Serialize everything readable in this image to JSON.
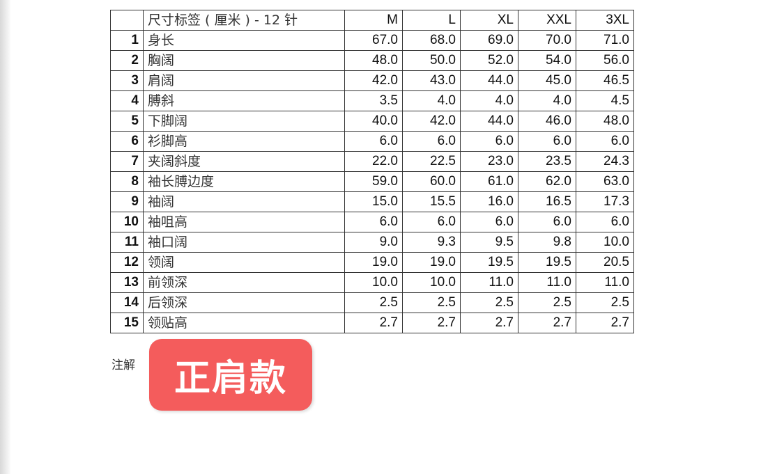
{
  "table": {
    "title": "尺寸标签 ( 厘米 ) - 12 针",
    "sizes": [
      "M",
      "L",
      "XL",
      "XXL",
      "3XL"
    ],
    "rows": [
      {
        "no": "1",
        "label": "身长",
        "values": [
          "67.0",
          "68.0",
          "69.0",
          "70.0",
          "71.0"
        ]
      },
      {
        "no": "2",
        "label": "胸阔",
        "values": [
          "48.0",
          "50.0",
          "52.0",
          "54.0",
          "56.0"
        ]
      },
      {
        "no": "3",
        "label": "肩阔",
        "values": [
          "42.0",
          "43.0",
          "44.0",
          "45.0",
          "46.5"
        ]
      },
      {
        "no": "4",
        "label": "膊斜",
        "values": [
          "3.5",
          "4.0",
          "4.0",
          "4.0",
          "4.5"
        ]
      },
      {
        "no": "5",
        "label": "下脚阔",
        "values": [
          "40.0",
          "42.0",
          "44.0",
          "46.0",
          "48.0"
        ]
      },
      {
        "no": "6",
        "label": "衫脚高",
        "values": [
          "6.0",
          "6.0",
          "6.0",
          "6.0",
          "6.0"
        ]
      },
      {
        "no": "7",
        "label": "夹阔斜度",
        "values": [
          "22.0",
          "22.5",
          "23.0",
          "23.5",
          "24.3"
        ]
      },
      {
        "no": "8",
        "label": "袖长膊边度",
        "values": [
          "59.0",
          "60.0",
          "61.0",
          "62.0",
          "63.0"
        ]
      },
      {
        "no": "9",
        "label": "袖阔",
        "values": [
          "15.0",
          "15.5",
          "16.0",
          "16.5",
          "17.3"
        ]
      },
      {
        "no": "10",
        "label": "袖咀高",
        "values": [
          "6.0",
          "6.0",
          "6.0",
          "6.0",
          "6.0"
        ]
      },
      {
        "no": "11",
        "label": "袖口阔",
        "values": [
          "9.0",
          "9.3",
          "9.5",
          "9.8",
          "10.0"
        ]
      },
      {
        "no": "12",
        "label": "领阔",
        "values": [
          "19.0",
          "19.0",
          "19.5",
          "19.5",
          "20.5"
        ]
      },
      {
        "no": "13",
        "label": "前领深",
        "values": [
          "10.0",
          "10.0",
          "11.0",
          "11.0",
          "11.0"
        ]
      },
      {
        "no": "14",
        "label": "后领深",
        "values": [
          "2.5",
          "2.5",
          "2.5",
          "2.5",
          "2.5"
        ]
      },
      {
        "no": "15",
        "label": "领贴高",
        "values": [
          "2.7",
          "2.7",
          "2.7",
          "2.7",
          "2.7"
        ]
      }
    ]
  },
  "note_label": "注解",
  "badge": {
    "text": "正肩款",
    "color": "#f45c5c"
  }
}
